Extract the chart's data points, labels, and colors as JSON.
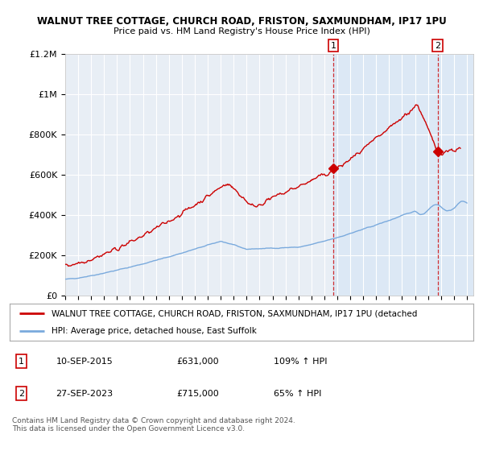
{
  "title1": "WALNUT TREE COTTAGE, CHURCH ROAD, FRISTON, SAXMUNDHAM, IP17 1PU",
  "title2": "Price paid vs. HM Land Registry's House Price Index (HPI)",
  "ylabel_ticks": [
    "£0",
    "£200K",
    "£400K",
    "£600K",
    "£800K",
    "£1M",
    "£1.2M"
  ],
  "ylim": [
    0,
    1200000
  ],
  "xlim_start": 1995.0,
  "xlim_end": 2026.5,
  "purchase1_date": 2015.7,
  "purchase1_price": 631000,
  "purchase1_label": "1",
  "purchase2_date": 2023.74,
  "purchase2_price": 715000,
  "purchase2_label": "2",
  "legend1_text": "WALNUT TREE COTTAGE, CHURCH ROAD, FRISTON, SAXMUNDHAM, IP17 1PU (detached",
  "legend2_text": "HPI: Average price, detached house, East Suffolk",
  "table_row1": [
    "1",
    "10-SEP-2015",
    "£631,000",
    "109% ↑ HPI"
  ],
  "table_row2": [
    "2",
    "27-SEP-2023",
    "£715,000",
    "65% ↑ HPI"
  ],
  "footnote": "Contains HM Land Registry data © Crown copyright and database right 2024.\nThis data is licensed under the Open Government Licence v3.0.",
  "hpi_color": "#7aaadd",
  "price_color": "#cc0000",
  "background_color": "#ffffff",
  "plot_bg_color": "#e8eef5",
  "grid_color": "#ffffff",
  "shade_color": "#dce8f5"
}
